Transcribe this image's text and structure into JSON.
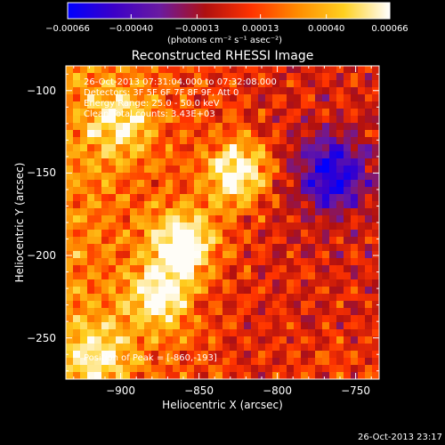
{
  "chart_data": {
    "type": "heatmap",
    "title": "Reconstructed RHESSI Image",
    "xlabel": "Heliocentric X (arcsec)",
    "ylabel": "Heliocentric Y (arcsec)",
    "xlim": [
      -935,
      -735
    ],
    "ylim": [
      -275,
      -85
    ],
    "x_ticks": [
      -900,
      -850,
      -800,
      -750
    ],
    "x_tick_labels": [
      "−900",
      "−850",
      "−800",
      "−750"
    ],
    "y_ticks": [
      -100,
      -150,
      -200,
      -250
    ],
    "y_tick_labels": [
      "−100",
      "−150",
      "−200",
      "−250"
    ],
    "colorbar": {
      "min": -0.00066,
      "max": 0.00066,
      "tick_values": [
        -0.00066,
        -0.0004,
        -0.00013,
        0.00013,
        0.0004,
        0.00066
      ],
      "tick_labels": [
        "−0.00066",
        "−0.00040",
        "−0.00013",
        "0.00013",
        "0.00040",
        "0.00066"
      ],
      "units_label": "(photons cm⁻² s⁻¹ asec⁻²)",
      "colormap": [
        "#0000ff",
        "#3b00c8",
        "#6a1aa0",
        "#b01010",
        "#ff3300",
        "#ff8c00",
        "#ffd020",
        "#ffffff"
      ]
    },
    "info_lines": [
      "26-Oct-2013 07:31:04.000 to 07:32:08.000",
      "Detectors: 3F 5F 6F 7F 8F 9F, Att 0",
      "Energy Range: 25.0 - 50.0 keV",
      "Clean     Total counts: 3.43E+03"
    ],
    "peak_label": "Position of Peak = [-860,-193]",
    "peak_position": [
      -860,
      -193
    ],
    "bright_sources": [
      {
        "x": -825,
        "y": -150,
        "level": 1.0
      },
      {
        "x": -860,
        "y": -193,
        "level": 1.0
      },
      {
        "x": -875,
        "y": -225,
        "level": 0.8
      },
      {
        "x": -900,
        "y": -120,
        "level": 0.65
      },
      {
        "x": -915,
        "y": -260,
        "level": 0.6
      }
    ],
    "negative_region": {
      "x": -765,
      "y": -150,
      "level": -0.9
    }
  },
  "footer": {
    "timestamp": "26-Oct-2013 23:17"
  }
}
